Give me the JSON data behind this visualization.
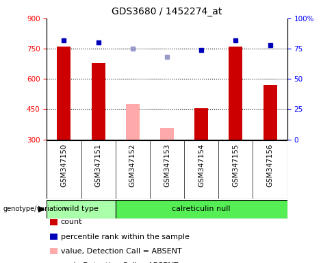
{
  "title": "GDS3680 / 1452274_at",
  "samples": [
    "GSM347150",
    "GSM347151",
    "GSM347152",
    "GSM347153",
    "GSM347154",
    "GSM347155",
    "GSM347156"
  ],
  "counts": [
    760,
    680,
    null,
    null,
    455,
    760,
    570
  ],
  "counts_absent": [
    null,
    null,
    475,
    355,
    null,
    null,
    null
  ],
  "ranks": [
    82,
    80,
    null,
    null,
    74,
    82,
    78
  ],
  "ranks_absent": [
    null,
    null,
    75,
    68,
    null,
    null,
    null
  ],
  "ylim_left": [
    300,
    900
  ],
  "ylim_right": [
    0,
    100
  ],
  "yticks_left": [
    300,
    450,
    600,
    750,
    900
  ],
  "yticks_right": [
    0,
    25,
    50,
    75,
    100
  ],
  "ytick_labels_right": [
    "0",
    "25",
    "50",
    "75",
    "100%"
  ],
  "bar_width": 0.4,
  "bar_color_present": "#cc0000",
  "bar_color_absent": "#ffaaaa",
  "marker_color_present": "#0000bb",
  "marker_color_absent": "#9999cc",
  "wt_color": "#aaffaa",
  "cr_color": "#55ee55",
  "genotype_label": "genotype/variation",
  "wt_label": "wild type",
  "cr_label": "calreticulin null",
  "legend_items": [
    {
      "label": "count",
      "color": "#cc0000",
      "type": "square"
    },
    {
      "label": "percentile rank within the sample",
      "color": "#0000bb",
      "type": "square"
    },
    {
      "label": "value, Detection Call = ABSENT",
      "color": "#ffaaaa",
      "type": "square"
    },
    {
      "label": "rank, Detection Call = ABSENT",
      "color": "#9999cc",
      "type": "square"
    }
  ],
  "plot_bg": "#ffffff",
  "fig_bg": "#ffffff",
  "sample_bg": "#cccccc",
  "hgrid_vals": [
    450,
    600,
    750
  ],
  "title_fontsize": 10,
  "tick_fontsize": 7.5,
  "label_fontsize": 8,
  "legend_fontsize": 8
}
